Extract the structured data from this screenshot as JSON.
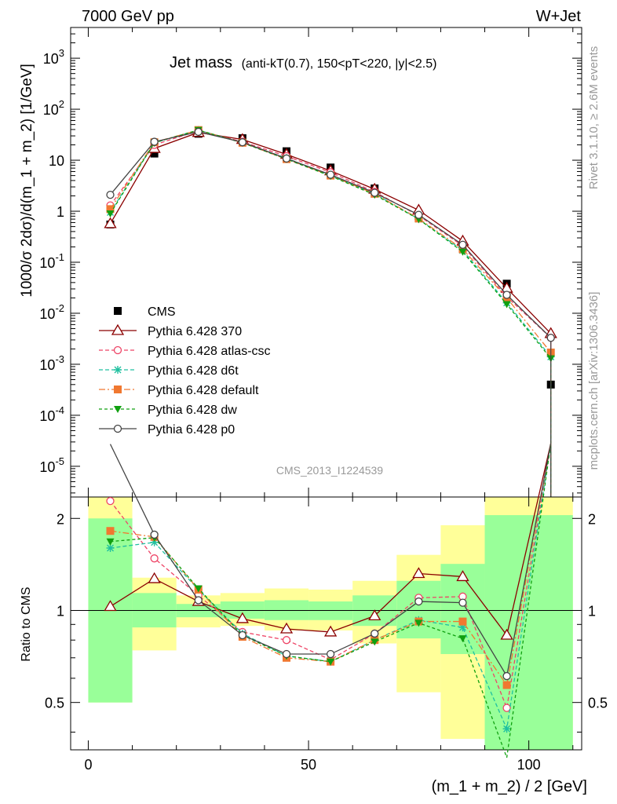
{
  "header": {
    "left": "7000 GeV pp",
    "right": "W+Jet"
  },
  "side": {
    "rivet": "Rivet 3.1.10, ≥ 2.6M events",
    "mcplots": "mcplots.cern.ch [arXiv:1306.3436]"
  },
  "analysis_tag": "CMS_2013_I1224539",
  "chart_data": [
    {
      "type": "line",
      "panel": "main",
      "title": "Jet mass",
      "subtitle": "(anti-kT(0.7), 150<pT<220, |y|<2.5)",
      "ylabel": "1000/σ 2dσ)/d(m_1 + m_2) [1/GeV]",
      "xlabel": "(m_1 + m_2) / 2 [GeV]",
      "yscale": "log",
      "ylim": [
        2.5e-06,
        4000
      ],
      "xlim": [
        -4,
        112
      ],
      "x_ticks": [
        "0",
        "50",
        "100"
      ],
      "y_ticks": [
        "10^-5",
        "10^-4",
        "10^-3",
        "10^-2",
        "10^-1",
        "1",
        "10",
        "10^2",
        "10^3"
      ],
      "legend_position": "left",
      "x": [
        5,
        15,
        25,
        35,
        45,
        55,
        65,
        75,
        85,
        95,
        105
      ],
      "series": [
        {
          "name": "CMS",
          "color": "#000000",
          "marker": "square",
          "values": [
            0.55,
            13.5,
            33,
            27,
            15,
            7.2,
            2.8,
            0.8,
            0.21,
            0.038,
            0.0004
          ]
        },
        {
          "name": "Pythia 6.428 370",
          "color": "#8b0000",
          "marker": "triangle-open",
          "dash": "",
          "values": [
            0.57,
            17,
            35,
            25.5,
            13,
            6.2,
            2.7,
            1.05,
            0.26,
            0.031,
            0.004
          ]
        },
        {
          "name": "Pythia 6.428 atlas-csc",
          "color": "#ee4466",
          "marker": "circle-open",
          "dash": "5,3",
          "values": [
            1.3,
            20,
            38,
            23,
            12,
            5.8,
            2.4,
            0.82,
            0.21,
            0.021,
            0.0033
          ]
        },
        {
          "name": "Pythia 6.428 d6t",
          "color": "#20c0a0",
          "marker": "star",
          "dash": "5,3",
          "values": [
            0.95,
            22,
            39,
            22,
            11,
            5,
            2.2,
            0.7,
            0.17,
            0.016,
            0.0014
          ]
        },
        {
          "name": "Pythia 6.428 default",
          "color": "#f07830",
          "marker": "square",
          "dash": "8,3,2,3",
          "values": [
            1.1,
            22.5,
            39,
            22,
            10.5,
            5,
            2.2,
            0.72,
            0.18,
            0.02,
            0.0017
          ]
        },
        {
          "name": "Pythia 6.428 dw",
          "color": "#10a010",
          "marker": "triangle-down",
          "dash": "4,3",
          "values": [
            0.9,
            22,
            39,
            22,
            10.5,
            4.9,
            2.1,
            0.7,
            0.16,
            0.015,
            0.0013
          ]
        },
        {
          "name": "Pythia 6.428 p0",
          "color": "#444444",
          "marker": "circle-open",
          "dash": "",
          "values": [
            2.1,
            23,
            36,
            22.5,
            10.8,
            5.2,
            2.3,
            0.85,
            0.22,
            0.023,
            0.0033
          ]
        }
      ]
    },
    {
      "type": "line",
      "panel": "ratio",
      "ylabel": "Ratio to CMS",
      "xlabel": "(m_1 + m_2) / 2 [GeV]",
      "yscale": "log",
      "ylim": [
        0.35,
        2.35
      ],
      "xlim": [
        -4,
        112
      ],
      "y_ticks": [
        "0.5",
        "1",
        "2"
      ],
      "reference_line": 1,
      "bands": [
        {
          "x0": 0,
          "x1": 10,
          "green": [
            0.5,
            2.0
          ],
          "yellow": [
            0.5,
            2.5
          ]
        },
        {
          "x0": 10,
          "x1": 20,
          "green": [
            0.88,
            1.14
          ],
          "yellow": [
            0.74,
            1.28
          ]
        },
        {
          "x0": 20,
          "x1": 30,
          "green": [
            0.95,
            1.05
          ],
          "yellow": [
            0.88,
            1.12
          ]
        },
        {
          "x0": 30,
          "x1": 40,
          "green": [
            0.94,
            1.07
          ],
          "yellow": [
            0.89,
            1.14
          ]
        },
        {
          "x0": 40,
          "x1": 50,
          "green": [
            0.93,
            1.08
          ],
          "yellow": [
            0.86,
            1.18
          ]
        },
        {
          "x0": 50,
          "x1": 60,
          "green": [
            0.93,
            1.07
          ],
          "yellow": [
            0.86,
            1.17
          ]
        },
        {
          "x0": 60,
          "x1": 70,
          "green": [
            0.89,
            1.12
          ],
          "yellow": [
            0.78,
            1.25
          ]
        },
        {
          "x0": 70,
          "x1": 80,
          "green": [
            0.81,
            1.25
          ],
          "yellow": [
            0.54,
            1.52
          ]
        },
        {
          "x0": 80,
          "x1": 90,
          "green": [
            0.72,
            1.42
          ],
          "yellow": [
            0.38,
            1.9
          ]
        },
        {
          "x0": 90,
          "x1": 110,
          "green": [
            0.35,
            2.05
          ],
          "yellow": [
            0.35,
            2.5
          ]
        }
      ],
      "series": [
        {
          "name": "Pythia 6.428 370",
          "color": "#8b0000",
          "values": [
            1.03,
            1.27,
            1.07,
            0.94,
            0.87,
            0.85,
            0.96,
            1.32,
            1.29,
            0.83,
            10
          ]
        },
        {
          "name": "Pythia 6.428 atlas-csc",
          "color": "#ee4466",
          "values": [
            2.28,
            1.48,
            1.12,
            0.85,
            0.8,
            0.69,
            0.84,
            1.1,
            1.11,
            0.48,
            10
          ]
        },
        {
          "name": "Pythia 6.428 d6t",
          "color": "#20c0a0",
          "values": [
            1.6,
            1.67,
            1.17,
            0.84,
            0.71,
            0.68,
            0.8,
            0.93,
            0.88,
            0.41,
            10
          ]
        },
        {
          "name": "Pythia 6.428 default",
          "color": "#f07830",
          "values": [
            1.82,
            1.74,
            1.17,
            0.82,
            0.7,
            0.68,
            0.8,
            0.92,
            0.92,
            0.57,
            10
          ]
        },
        {
          "name": "Pythia 6.428 dw",
          "color": "#10a010",
          "values": [
            1.68,
            1.73,
            1.18,
            0.83,
            0.71,
            0.68,
            0.79,
            0.91,
            0.81,
            0.33,
            10
          ]
        },
        {
          "name": "Pythia 6.428 p0",
          "color": "#444444",
          "values": [
            3.5,
            1.77,
            1.08,
            0.83,
            0.72,
            0.72,
            0.84,
            1.07,
            1.06,
            0.61,
            10
          ]
        }
      ]
    }
  ]
}
